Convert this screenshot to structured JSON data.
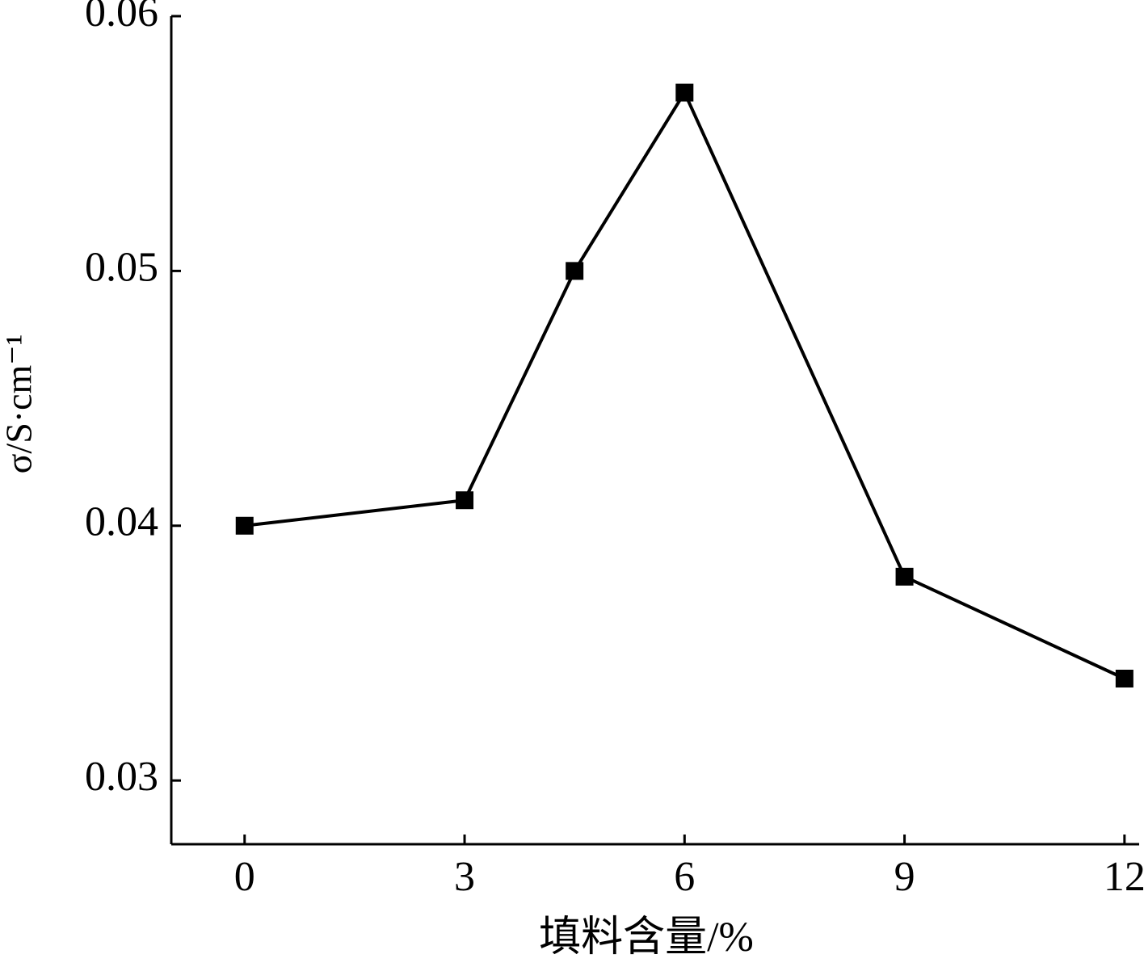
{
  "chart_data": {
    "type": "line",
    "x_label": "填料含量/%",
    "y_label": "σ/S·cm⁻¹",
    "x": [
      0,
      3,
      4.5,
      6,
      9,
      12
    ],
    "values": [
      0.04,
      0.041,
      0.05,
      0.057,
      0.038,
      0.034
    ],
    "color": "#000000",
    "xlim": [
      -1,
      12.2
    ],
    "xticks": [
      0,
      3,
      6,
      9,
      12
    ],
    "ylim": [
      0.0275,
      0.06
    ],
    "yticks": [
      0.03,
      0.04,
      0.05,
      0.06
    ],
    "grid": false
  }
}
